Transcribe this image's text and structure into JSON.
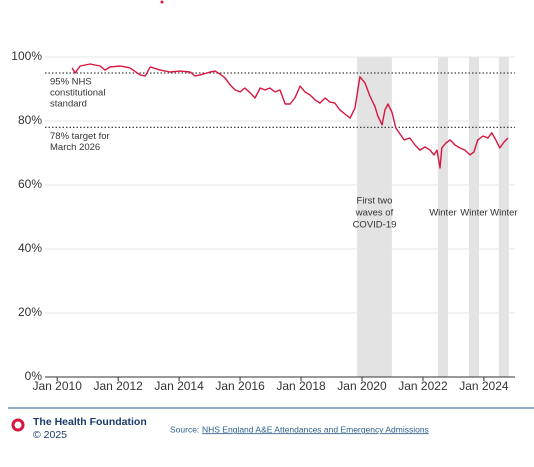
{
  "chart_data": {
    "type": "line",
    "x": [
      2010.49,
      2010.59,
      2010.75,
      2011.08,
      2011.41,
      2011.57,
      2011.74,
      2012.07,
      2012.39,
      2012.72,
      2012.89,
      2013.05,
      2013.38,
      2013.7,
      2014.03,
      2014.36,
      2014.52,
      2014.69,
      2015.02,
      2015.18,
      2015.34,
      2015.51,
      2015.67,
      2015.84,
      2016.0,
      2016.16,
      2016.33,
      2016.49,
      2016.66,
      2016.82,
      2016.98,
      2017.15,
      2017.31,
      2017.48,
      2017.64,
      2017.8,
      2017.97,
      2018.13,
      2018.3,
      2018.46,
      2018.62,
      2018.79,
      2018.95,
      2019.11,
      2019.28,
      2019.44,
      2019.61,
      2019.77,
      2019.93,
      2020.1,
      2020.26,
      2020.43,
      2020.52,
      2020.66,
      2020.75,
      2020.85,
      2020.98,
      2021.11,
      2021.25,
      2021.38,
      2021.57,
      2021.74,
      2021.9,
      2022.07,
      2022.23,
      2022.36,
      2022.46,
      2022.56,
      2022.62,
      2022.75,
      2022.89,
      2023.05,
      2023.21,
      2023.38,
      2023.54,
      2023.67,
      2023.8,
      2023.97,
      2024.13,
      2024.26,
      2024.39,
      2024.52,
      2024.66,
      2024.79
    ],
    "values": [
      96.6,
      95.0,
      97.2,
      97.8,
      97.2,
      95.9,
      96.9,
      97.2,
      96.6,
      94.4,
      94.1,
      96.9,
      95.9,
      95.3,
      95.6,
      95.3,
      94.1,
      94.4,
      95.3,
      95.6,
      94.7,
      93.4,
      91.3,
      89.7,
      89.1,
      90.3,
      88.8,
      87.2,
      90.3,
      89.7,
      90.3,
      89.1,
      89.7,
      85.3,
      85.3,
      87.2,
      90.9,
      89.1,
      88.1,
      86.6,
      85.6,
      87.2,
      85.9,
      85.6,
      83.4,
      82.2,
      80.9,
      84.1,
      93.8,
      91.9,
      87.8,
      84.4,
      81.6,
      78.8,
      83.4,
      85.3,
      82.8,
      77.8,
      75.9,
      74.1,
      74.7,
      72.5,
      70.9,
      71.9,
      70.9,
      69.4,
      70.9,
      65.3,
      71.6,
      73.1,
      74.1,
      72.5,
      71.6,
      70.9,
      69.4,
      70.3,
      74.1,
      75.3,
      74.7,
      76.3,
      74.1,
      71.6,
      73.4,
      74.7
    ],
    "color": "#d7153f",
    "xlim": [
      2009.6,
      2025.02
    ],
    "xticks": [
      {
        "value": 2010,
        "label": "Jan 2010"
      },
      {
        "value": 2012,
        "label": "Jan 2012"
      },
      {
        "value": 2014,
        "label": "Jan 2014"
      },
      {
        "value": 2016,
        "label": "Jan 2016"
      },
      {
        "value": 2018,
        "label": "Jan 2018"
      },
      {
        "value": 2020,
        "label": "Jan 2020"
      },
      {
        "value": 2022,
        "label": "Jan 2022"
      },
      {
        "value": 2024,
        "label": "Jan 2024"
      }
    ],
    "ylim": [
      0,
      100
    ],
    "yticks": [
      {
        "value": 0,
        "label": "0%"
      },
      {
        "value": 20,
        "label": "20%"
      },
      {
        "value": 40,
        "label": "40%"
      },
      {
        "value": 60,
        "label": "60%"
      },
      {
        "value": 80,
        "label": "80%"
      },
      {
        "value": 100,
        "label": "100%"
      }
    ],
    "grid": true,
    "reference_lines": [
      {
        "value": 95,
        "label": [
          "95% NHS",
          "constitutional",
          "standard"
        ]
      },
      {
        "value": 78,
        "label": [
          "78% target for",
          "March 2026"
        ]
      }
    ],
    "shaded_periods": [
      {
        "x": [
          2019.84,
          2020.98
        ],
        "label": [
          "First two",
          "waves of",
          "COVID-19"
        ]
      },
      {
        "x": [
          2022.49,
          2022.82
        ],
        "label": [
          "Winter"
        ]
      },
      {
        "x": [
          2023.51,
          2023.84
        ],
        "label": [
          "Winter"
        ]
      },
      {
        "x": [
          2024.49,
          2024.82
        ],
        "label": [
          "Winter"
        ]
      }
    ]
  },
  "footer": {
    "organization": "The Health Foundation",
    "copyright": "© 2025",
    "source_prefix": "Source:",
    "source_link": "NHS England A&E Attendances and Emergency Admissions"
  }
}
